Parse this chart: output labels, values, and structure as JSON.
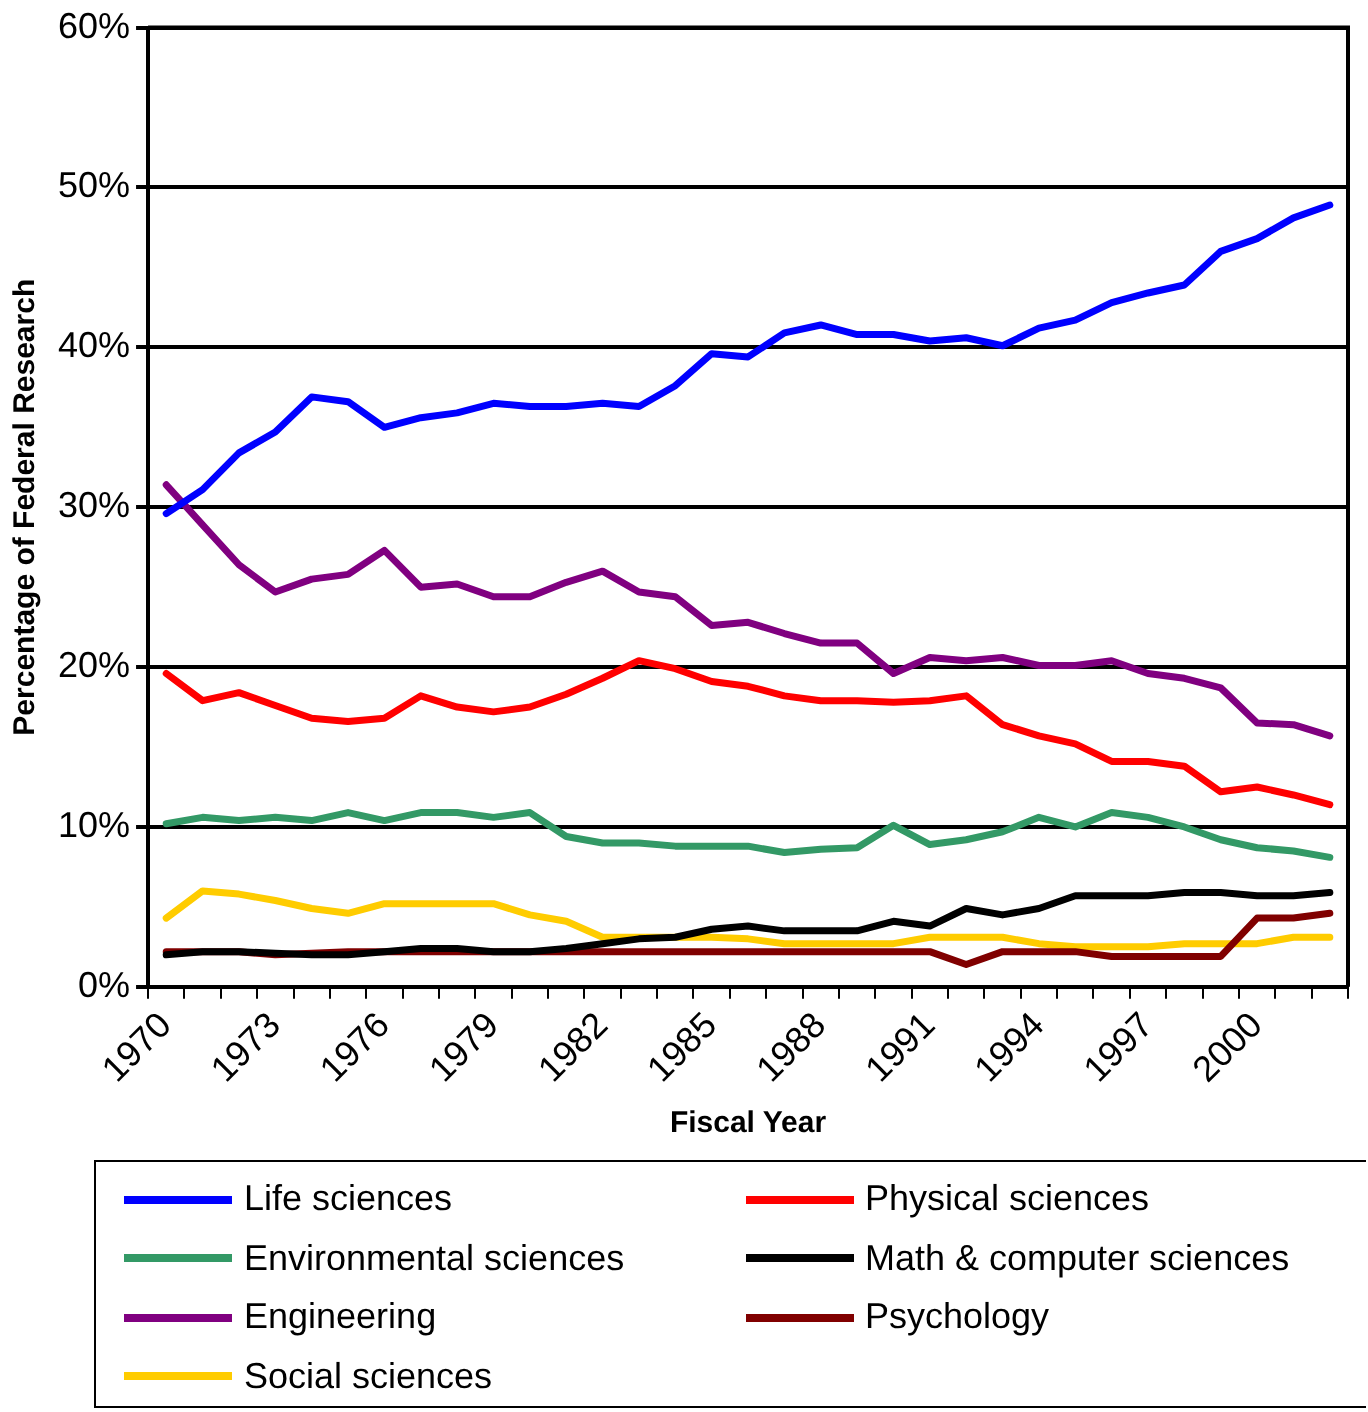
{
  "chart_data": {
    "type": "line",
    "xlabel": "Fiscal Year",
    "ylabel": "Percentage of Federal Research",
    "categories": [
      "1970",
      null,
      null,
      "1973",
      null,
      null,
      "1976",
      null,
      null,
      "1979",
      null,
      null,
      "1982",
      null,
      null,
      "1985",
      null,
      null,
      "1988",
      null,
      null,
      "1991",
      null,
      null,
      "1994",
      null,
      null,
      "1997",
      null,
      null,
      "2000",
      null,
      null
    ],
    "ylim": [
      0,
      60
    ],
    "yticks": [
      {
        "value": 0,
        "label": "0%"
      },
      {
        "value": 10,
        "label": "10%"
      },
      {
        "value": 20,
        "label": "20%"
      },
      {
        "value": 30,
        "label": "30%"
      },
      {
        "value": 40,
        "label": "40%"
      },
      {
        "value": 50,
        "label": "50%"
      },
      {
        "value": 60,
        "label": "60%"
      }
    ],
    "grid": "y",
    "legend": "bottom",
    "marker": "none",
    "line_style": "solid",
    "series": [
      {
        "name": "Life sciences",
        "color": "#0000ff",
        "values": [
          29.6,
          31.1,
          33.4,
          34.7,
          36.9,
          36.6,
          35.0,
          35.6,
          35.9,
          36.5,
          36.3,
          36.3,
          36.5,
          36.3,
          37.6,
          39.6,
          39.4,
          40.9,
          41.4,
          40.8,
          40.8,
          40.4,
          40.6,
          40.1,
          41.2,
          41.7,
          42.8,
          43.4,
          43.9,
          46.0,
          46.8,
          48.1,
          48.9
        ]
      },
      {
        "name": "Physical sciences",
        "color": "#ff0000",
        "values": [
          19.6,
          17.9,
          18.4,
          17.6,
          16.8,
          16.6,
          16.8,
          18.2,
          17.5,
          17.2,
          17.5,
          18.3,
          19.3,
          20.4,
          19.9,
          19.1,
          18.8,
          18.2,
          17.9,
          17.9,
          17.8,
          17.9,
          18.2,
          16.4,
          15.7,
          15.2,
          14.1,
          14.1,
          13.8,
          12.2,
          12.5,
          12.0,
          11.4
        ]
      },
      {
        "name": "Environmental sciences",
        "color": "#339966",
        "values": [
          10.2,
          10.6,
          10.4,
          10.6,
          10.4,
          10.9,
          10.4,
          10.9,
          10.9,
          10.6,
          10.9,
          9.4,
          9.0,
          9.0,
          8.8,
          8.8,
          8.8,
          8.4,
          8.6,
          8.7,
          10.1,
          8.9,
          9.2,
          9.7,
          10.6,
          10.0,
          10.9,
          10.6,
          10.0,
          9.2,
          8.7,
          8.5,
          8.1
        ]
      },
      {
        "name": "Math & computer sciences",
        "color": "#000000",
        "values": [
          2.0,
          2.2,
          2.2,
          2.1,
          2.0,
          2.0,
          2.2,
          2.4,
          2.4,
          2.2,
          2.2,
          2.4,
          2.7,
          3.0,
          3.1,
          3.6,
          3.8,
          3.5,
          3.5,
          3.5,
          4.1,
          3.8,
          4.9,
          4.5,
          4.9,
          5.7,
          5.7,
          5.7,
          5.9,
          5.9,
          5.7,
          5.7,
          5.9
        ]
      },
      {
        "name": "Engineering",
        "color": "#800080",
        "values": [
          31.4,
          28.9,
          26.4,
          24.7,
          25.5,
          25.8,
          27.3,
          25.0,
          25.2,
          24.4,
          24.4,
          25.3,
          26.0,
          24.7,
          24.4,
          22.6,
          22.8,
          22.1,
          21.5,
          21.5,
          19.6,
          20.6,
          20.4,
          20.6,
          20.1,
          20.1,
          20.4,
          19.6,
          19.3,
          18.7,
          16.5,
          16.4,
          15.7
        ]
      },
      {
        "name": "Psychology",
        "color": "#800000",
        "values": [
          2.2,
          2.2,
          2.2,
          2.0,
          2.1,
          2.2,
          2.2,
          2.2,
          2.2,
          2.2,
          2.2,
          2.2,
          2.2,
          2.2,
          2.2,
          2.2,
          2.2,
          2.2,
          2.2,
          2.2,
          2.2,
          2.2,
          1.4,
          2.2,
          2.2,
          2.2,
          1.9,
          1.9,
          1.9,
          1.9,
          4.3,
          4.3,
          4.6
        ]
      },
      {
        "name": "Social sciences",
        "color": "#ffcc00",
        "values": [
          4.3,
          6.0,
          5.8,
          5.4,
          4.9,
          4.6,
          5.2,
          5.2,
          5.2,
          5.2,
          4.5,
          4.1,
          3.1,
          3.1,
          3.1,
          3.1,
          3.0,
          2.7,
          2.7,
          2.7,
          2.7,
          3.1,
          3.1,
          3.1,
          2.7,
          2.5,
          2.5,
          2.5,
          2.7,
          2.7,
          2.7,
          3.1,
          3.1
        ]
      }
    ]
  }
}
